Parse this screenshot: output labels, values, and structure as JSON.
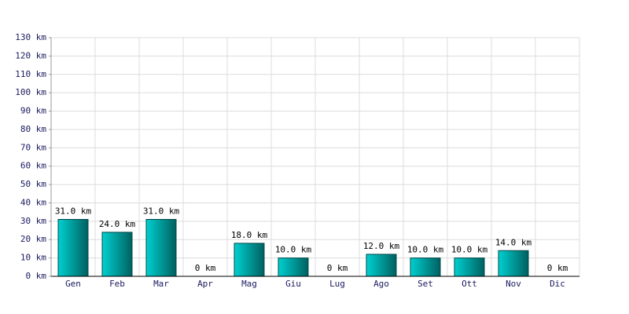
{
  "chart_data": {
    "type": "bar",
    "categories": [
      "Gen",
      "Feb",
      "Mar",
      "Apr",
      "Mag",
      "Giu",
      "Lug",
      "Ago",
      "Set",
      "Ott",
      "Nov",
      "Dic"
    ],
    "values": [
      31,
      24,
      31,
      0,
      18,
      10,
      0,
      12,
      10,
      10,
      14,
      0
    ],
    "value_labels": [
      "31.0 km",
      "24.0 km",
      "31.0 km",
      "0 km",
      "18.0 km",
      "10.0 km",
      "0 km",
      "12.0 km",
      "10.0 km",
      "10.0 km",
      "14.0 km",
      "0 km"
    ],
    "color": "#00d0d0",
    "ylim": [
      0,
      130
    ],
    "yticks": [
      {
        "value": 0,
        "label": "0 km"
      },
      {
        "value": 10,
        "label": "10 km"
      },
      {
        "value": 20,
        "label": "20 km"
      },
      {
        "value": 30,
        "label": "30 km"
      },
      {
        "value": 40,
        "label": "40 km"
      },
      {
        "value": 50,
        "label": "50 km"
      },
      {
        "value": 60,
        "label": "60 km"
      },
      {
        "value": 70,
        "label": "70 km"
      },
      {
        "value": 80,
        "label": "80 km"
      },
      {
        "value": 90,
        "label": "90 km"
      },
      {
        "value": 100,
        "label": "100 km"
      },
      {
        "value": 110,
        "label": "110 km"
      },
      {
        "value": 120,
        "label": "120 km"
      },
      {
        "value": 130,
        "label": "130 km"
      }
    ],
    "grid": true
  }
}
